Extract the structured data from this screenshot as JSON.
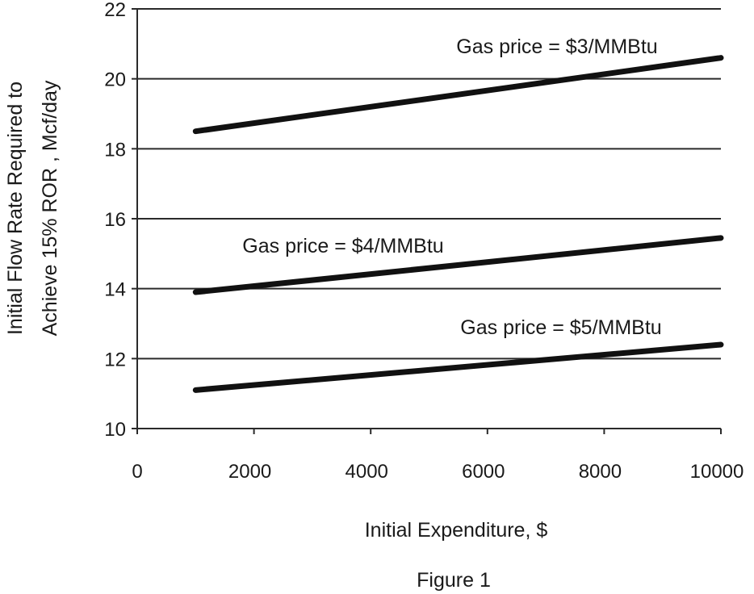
{
  "chart_data": {
    "type": "line",
    "xlabel": "Initial Expenditure, $",
    "ylabel_line1": "Initial Flow Rate Required to",
    "ylabel_line2": "Achieve 15% ROR , Mcf/day",
    "caption": "Figure 1",
    "xlim": [
      0,
      10000
    ],
    "ylim": [
      10,
      22
    ],
    "x_ticks": [
      0,
      2000,
      4000,
      6000,
      8000,
      10000
    ],
    "y_ticks": [
      10,
      12,
      14,
      16,
      18,
      20,
      22
    ],
    "grid": "horizontal",
    "series": [
      {
        "name": "Gas price = $3/MMBtu",
        "x": [
          1000,
          10000
        ],
        "y": [
          18.5,
          20.6
        ]
      },
      {
        "name": "Gas price = $4/MMBtu",
        "x": [
          1000,
          10000
        ],
        "y": [
          13.9,
          15.45
        ]
      },
      {
        "name": "Gas price = $5/MMBtu",
        "x": [
          1000,
          10000
        ],
        "y": [
          11.1,
          12.4
        ]
      }
    ],
    "colors": {
      "line": "#111111",
      "grid": "#2a2a2a"
    }
  }
}
